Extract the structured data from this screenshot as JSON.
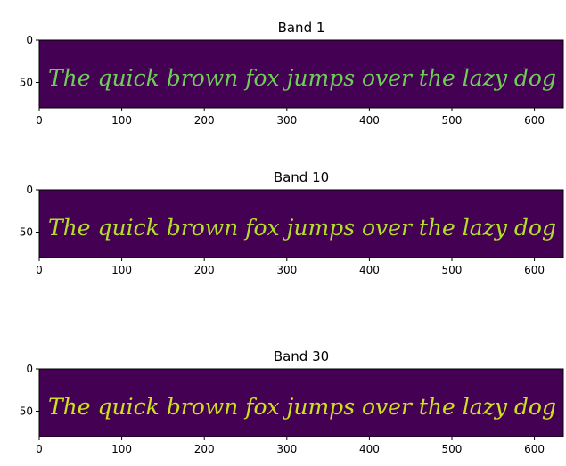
{
  "figure": {
    "background": "#ffffff",
    "image_bg_color": "#440154",
    "handwriting_text": "The quick brown fox jumps over the lazy dog"
  },
  "chart_data": [
    {
      "type": "heatmap",
      "title": "Band 1",
      "colormap": "viridis",
      "ink_color": "#6ece58",
      "xlim": [
        0,
        635
      ],
      "ylim": [
        80,
        0
      ],
      "xticks": [
        0,
        100,
        200,
        300,
        400,
        500,
        600
      ],
      "yticks": [
        0,
        50
      ]
    },
    {
      "type": "heatmap",
      "title": "Band 10",
      "colormap": "viridis",
      "ink_color": "#b5de2b",
      "xlim": [
        0,
        635
      ],
      "ylim": [
        80,
        0
      ],
      "xticks": [
        0,
        100,
        200,
        300,
        400,
        500,
        600
      ],
      "yticks": [
        0,
        50
      ]
    },
    {
      "type": "heatmap",
      "title": "Band 30",
      "colormap": "viridis",
      "ink_color": "#cde11d",
      "xlim": [
        0,
        635
      ],
      "ylim": [
        80,
        0
      ],
      "xticks": [
        0,
        100,
        200,
        300,
        400,
        500,
        600
      ],
      "yticks": [
        0,
        50
      ]
    }
  ]
}
